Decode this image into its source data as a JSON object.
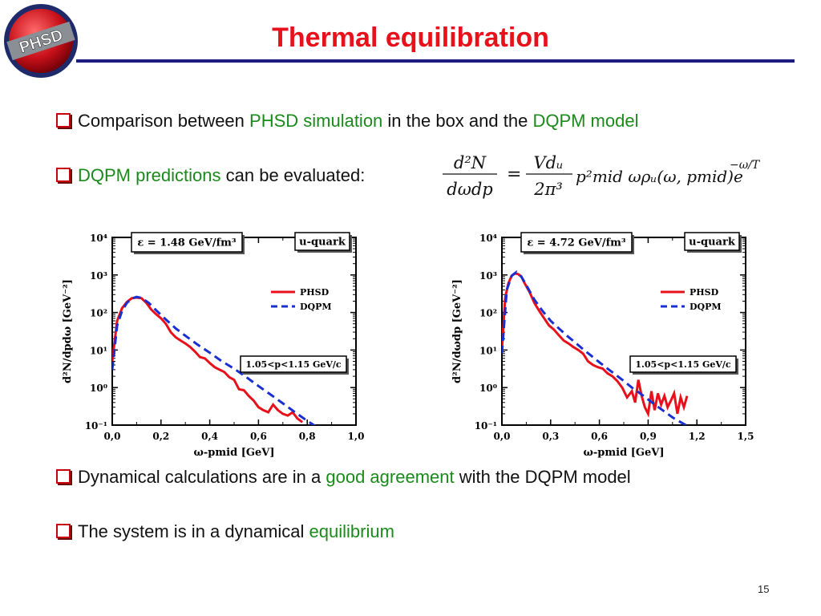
{
  "slide": {
    "title": "Thermal equilibration",
    "logo_text": "PHSD",
    "page_number": "15",
    "bullets": [
      {
        "parts": [
          {
            "t": "Comparison between ",
            "c": "n"
          },
          {
            "t": "PHSD simulation",
            "c": "g"
          },
          {
            "t": " in the box and the ",
            "c": "n"
          },
          {
            "t": "DQPM model",
            "c": "g"
          }
        ]
      },
      {
        "parts": [
          {
            "t": "DQPM predictions",
            "c": "g"
          },
          {
            "t": " can be evaluated:",
            "c": "n"
          }
        ]
      },
      {
        "parts": [
          {
            "t": "Dynamical calculations are in a ",
            "c": "n"
          },
          {
            "t": "good agreement",
            "c": "g"
          },
          {
            "t": " with the DQPM model",
            "c": "n"
          }
        ]
      },
      {
        "parts": [
          {
            "t": "The system is in a dynamical ",
            "c": "n"
          },
          {
            "t": "equilibrium",
            "c": "g"
          }
        ]
      }
    ],
    "formula": {
      "lhs_num": "d²N",
      "lhs_den": "dωdp",
      "eq": "=",
      "rhs_num": "Vdᵤ",
      "rhs_den": "2π³",
      "rhs_rest": "p²mid ωρᵤ(ω, pmid)e",
      "exponent": "−ω/T"
    },
    "colors": {
      "title": "#e8101a",
      "rule": "#1c1c80",
      "green": "#1a8a1a",
      "phsd": "#e8101a",
      "dqpm": "#1a2fd0"
    }
  },
  "chart_data": [
    {
      "type": "line",
      "energy_label": "ε = 1.48 GeV/fm³",
      "particle_label": "u-quark",
      "momentum_label": "1.05<p<1.15 GeV/c",
      "xlabel": "ω-pmid [GeV]",
      "ylabel": "d²N/dpdω [GeV⁻²]",
      "xlim": [
        0.0,
        1.0
      ],
      "ylog": true,
      "ylim_exp": [
        -1,
        4
      ],
      "xticks": [
        "0,0",
        "0,2",
        "0,4",
        "0,6",
        "0,8",
        "1,0"
      ],
      "xtick_values": [
        0.0,
        0.2,
        0.4,
        0.6,
        0.8,
        1.0
      ],
      "yticks": [
        "10⁻¹",
        "10⁰",
        "10¹",
        "10²",
        "10³",
        "10⁴"
      ],
      "legend": [
        "PHSD",
        "DQPM"
      ],
      "series": [
        {
          "name": "PHSD",
          "x": [
            0.0,
            0.02,
            0.04,
            0.06,
            0.08,
            0.1,
            0.12,
            0.14,
            0.16,
            0.18,
            0.2,
            0.22,
            0.24,
            0.26,
            0.28,
            0.3,
            0.32,
            0.34,
            0.36,
            0.38,
            0.4,
            0.42,
            0.44,
            0.46,
            0.48,
            0.5,
            0.52,
            0.54,
            0.56,
            0.58,
            0.6,
            0.62,
            0.64,
            0.66,
            0.68,
            0.7,
            0.72,
            0.74,
            0.76,
            0.78
          ],
          "y": [
            5,
            60,
            130,
            190,
            240,
            250,
            240,
            180,
            120,
            90,
            70,
            50,
            30,
            22,
            18,
            15,
            12,
            9,
            6.5,
            6,
            4.5,
            3.5,
            3,
            2.6,
            1.9,
            1.6,
            0.9,
            0.85,
            0.6,
            0.45,
            0.3,
            0.25,
            0.22,
            0.35,
            0.25,
            0.2,
            0.18,
            0.22,
            0.15,
            0.12
          ]
        },
        {
          "name": "DQPM",
          "x": [
            0.0,
            0.02,
            0.04,
            0.06,
            0.08,
            0.1,
            0.12,
            0.15,
            0.18,
            0.22,
            0.26,
            0.3,
            0.35,
            0.4,
            0.45,
            0.5,
            0.55,
            0.6,
            0.65,
            0.7,
            0.75,
            0.8,
            0.85
          ],
          "y": [
            3,
            45,
            110,
            180,
            235,
            260,
            245,
            180,
            115,
            65,
            38,
            24,
            14,
            8.5,
            5,
            3.2,
            1.9,
            1.1,
            0.65,
            0.38,
            0.22,
            0.13,
            0.08
          ]
        }
      ]
    },
    {
      "type": "line",
      "energy_label": "ε = 4.72 GeV/fm³",
      "particle_label": "u-quark",
      "momentum_label": "1.05<p<1.15 GeV/c",
      "xlabel": "ω-pmid [GeV]",
      "ylabel": "d²N/dωdp [GeV⁻²]",
      "xlim": [
        0.0,
        1.5
      ],
      "ylog": true,
      "ylim_exp": [
        -1,
        4
      ],
      "xticks": [
        "0,0",
        "0,3",
        "0,6",
        "0,9",
        "1,2",
        "1,5"
      ],
      "xtick_values": [
        0.0,
        0.3,
        0.6,
        0.9,
        1.2,
        1.5
      ],
      "yticks": [
        "10⁻¹",
        "10⁰",
        "10¹",
        "10²",
        "10³",
        "10⁴"
      ],
      "legend": [
        "PHSD",
        "DQPM"
      ],
      "series": [
        {
          "name": "PHSD",
          "x": [
            0.0,
            0.02,
            0.04,
            0.06,
            0.08,
            0.1,
            0.12,
            0.14,
            0.17,
            0.2,
            0.23,
            0.26,
            0.29,
            0.32,
            0.35,
            0.38,
            0.41,
            0.44,
            0.47,
            0.5,
            0.53,
            0.56,
            0.59,
            0.62,
            0.65,
            0.68,
            0.71,
            0.74,
            0.77,
            0.8,
            0.82,
            0.84,
            0.86,
            0.88,
            0.9,
            0.92,
            0.94,
            0.96,
            0.98,
            1.0,
            1.02,
            1.04,
            1.06,
            1.08,
            1.1,
            1.12,
            1.14
          ],
          "y": [
            10,
            250,
            600,
            950,
            1100,
            1050,
            900,
            600,
            350,
            180,
            110,
            70,
            45,
            35,
            25,
            18,
            15,
            12,
            10,
            8,
            5,
            4,
            3.5,
            3.2,
            2.4,
            2,
            1.5,
            1.0,
            0.55,
            0.8,
            0.4,
            1.6,
            0.6,
            0.3,
            0.2,
            0.8,
            0.25,
            0.7,
            0.35,
            0.6,
            0.3,
            0.45,
            0.7,
            0.2,
            0.55,
            0.3,
            0.6
          ]
        },
        {
          "name": "DQPM",
          "x": [
            0.0,
            0.03,
            0.06,
            0.09,
            0.12,
            0.16,
            0.2,
            0.25,
            0.3,
            0.35,
            0.4,
            0.45,
            0.5,
            0.55,
            0.6,
            0.65,
            0.7,
            0.75,
            0.8,
            0.85,
            0.9,
            0.95,
            1.0,
            1.05,
            1.1,
            1.15,
            1.2
          ],
          "y": [
            8,
            400,
            950,
            1200,
            900,
            450,
            220,
            110,
            60,
            38,
            24,
            16,
            10.5,
            7,
            4.7,
            3.2,
            2.2,
            1.5,
            1.0,
            0.7,
            0.48,
            0.33,
            0.23,
            0.16,
            0.12,
            0.09,
            0.07
          ]
        }
      ]
    }
  ]
}
